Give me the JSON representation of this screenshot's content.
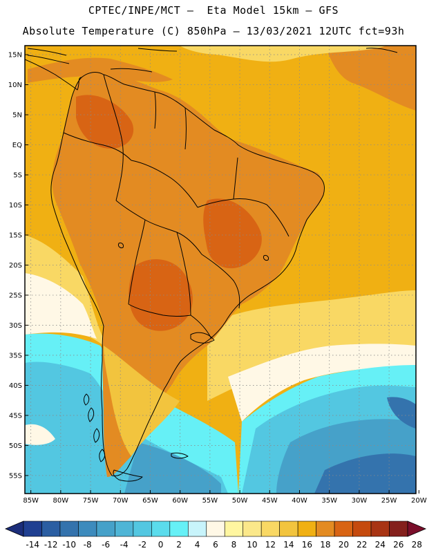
{
  "title": {
    "line1": "CPTEC/INPE/MCT –  Eta Model 15km – GFS",
    "line2": "Absolute Temperature (C) 850hPa – 13/03/2021 12UTC fct=93h"
  },
  "axes": {
    "lat_labels": [
      "15N",
      "10N",
      "5N",
      "EQ",
      "5S",
      "10S",
      "15S",
      "20S",
      "25S",
      "30S",
      "35S",
      "40S",
      "45S",
      "50S",
      "55S"
    ],
    "lon_labels": [
      "85W",
      "80W",
      "75W",
      "70W",
      "65W",
      "60W",
      "55W",
      "50W",
      "45W",
      "40W",
      "35W",
      "30W",
      "25W",
      "20W"
    ],
    "lat_values": [
      15,
      10,
      5,
      0,
      -5,
      -10,
      -15,
      -20,
      -25,
      -30,
      -35,
      -40,
      -45,
      -50,
      -55
    ],
    "lon_values": [
      -85,
      -80,
      -75,
      -70,
      -65,
      -60,
      -55,
      -50,
      -45,
      -40,
      -35,
      -30,
      -25,
      -20
    ],
    "lat_range": [
      -58,
      16.5
    ],
    "lon_range": [
      -86,
      -20.5
    ],
    "grid": "dotted"
  },
  "colorbar": {
    "labels": [
      "-14",
      "-12",
      "-10",
      "-8",
      "-6",
      "-4",
      "-2",
      "0",
      "2",
      "4",
      "6",
      "8",
      "10",
      "12",
      "14",
      "16",
      "18",
      "20",
      "22",
      "24",
      "26",
      "28"
    ],
    "colors": [
      "#1f3f91",
      "#2b5ea2",
      "#3473ad",
      "#3d8bbd",
      "#46a1c9",
      "#4fb5d6",
      "#53c7e1",
      "#5bdcec",
      "#66f0f6",
      "#c8f4fb",
      "#fff8e6",
      "#fff6a0",
      "#fbe88a",
      "#f9d864",
      "#f2c43e",
      "#f0b013",
      "#e38b22",
      "#d86414",
      "#c54a0e",
      "#a83414",
      "#84201c"
    ],
    "under_color": "#1b2d7a",
    "over_color": "#7a0e2a"
  },
  "fields": {
    "ocean_north": "#f0b013",
    "ocean_north_warm": "#e38b22",
    "ocean_band": "#f9d864",
    "ocean_pale": "#fff8e6",
    "ocean_cyan": "#66f0f6",
    "ocean_mid": "#53c7e1",
    "ocean_deep": "#46a1c9",
    "ocean_deepest": "#3473ad",
    "land_warm": "#e38b22",
    "land_hot": "#d86414",
    "land_mild": "#f2c43e"
  }
}
